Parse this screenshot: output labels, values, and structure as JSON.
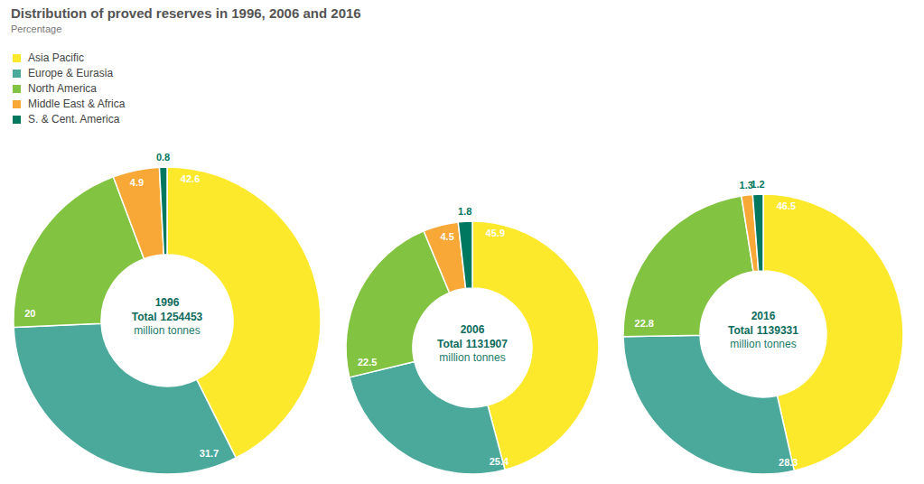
{
  "chart_data": {
    "type": "pie",
    "title": "Distribution of proved reserves in 1996, 2006 and 2016",
    "subtitle": "Percentage",
    "categories": [
      "Asia Pacific",
      "Europe & Eurasia",
      "North America",
      "Middle East & Africa",
      "S. & Cent. America"
    ],
    "colors": [
      "#fde92b",
      "#4aa99b",
      "#82c341",
      "#f8a837",
      "#00775f"
    ],
    "data_labels": true,
    "total_label": "Total",
    "unit": "million tonnes",
    "series": [
      {
        "name": "1996",
        "total": 1254453,
        "values": [
          42.6,
          31.7,
          20.0,
          4.9,
          0.8
        ]
      },
      {
        "name": "2006",
        "total": 1131907,
        "values": [
          45.9,
          25.4,
          22.5,
          4.5,
          1.8
        ]
      },
      {
        "name": "2016",
        "total": 1139331,
        "values": [
          46.5,
          28.3,
          22.8,
          1.3,
          1.2
        ]
      }
    ]
  }
}
